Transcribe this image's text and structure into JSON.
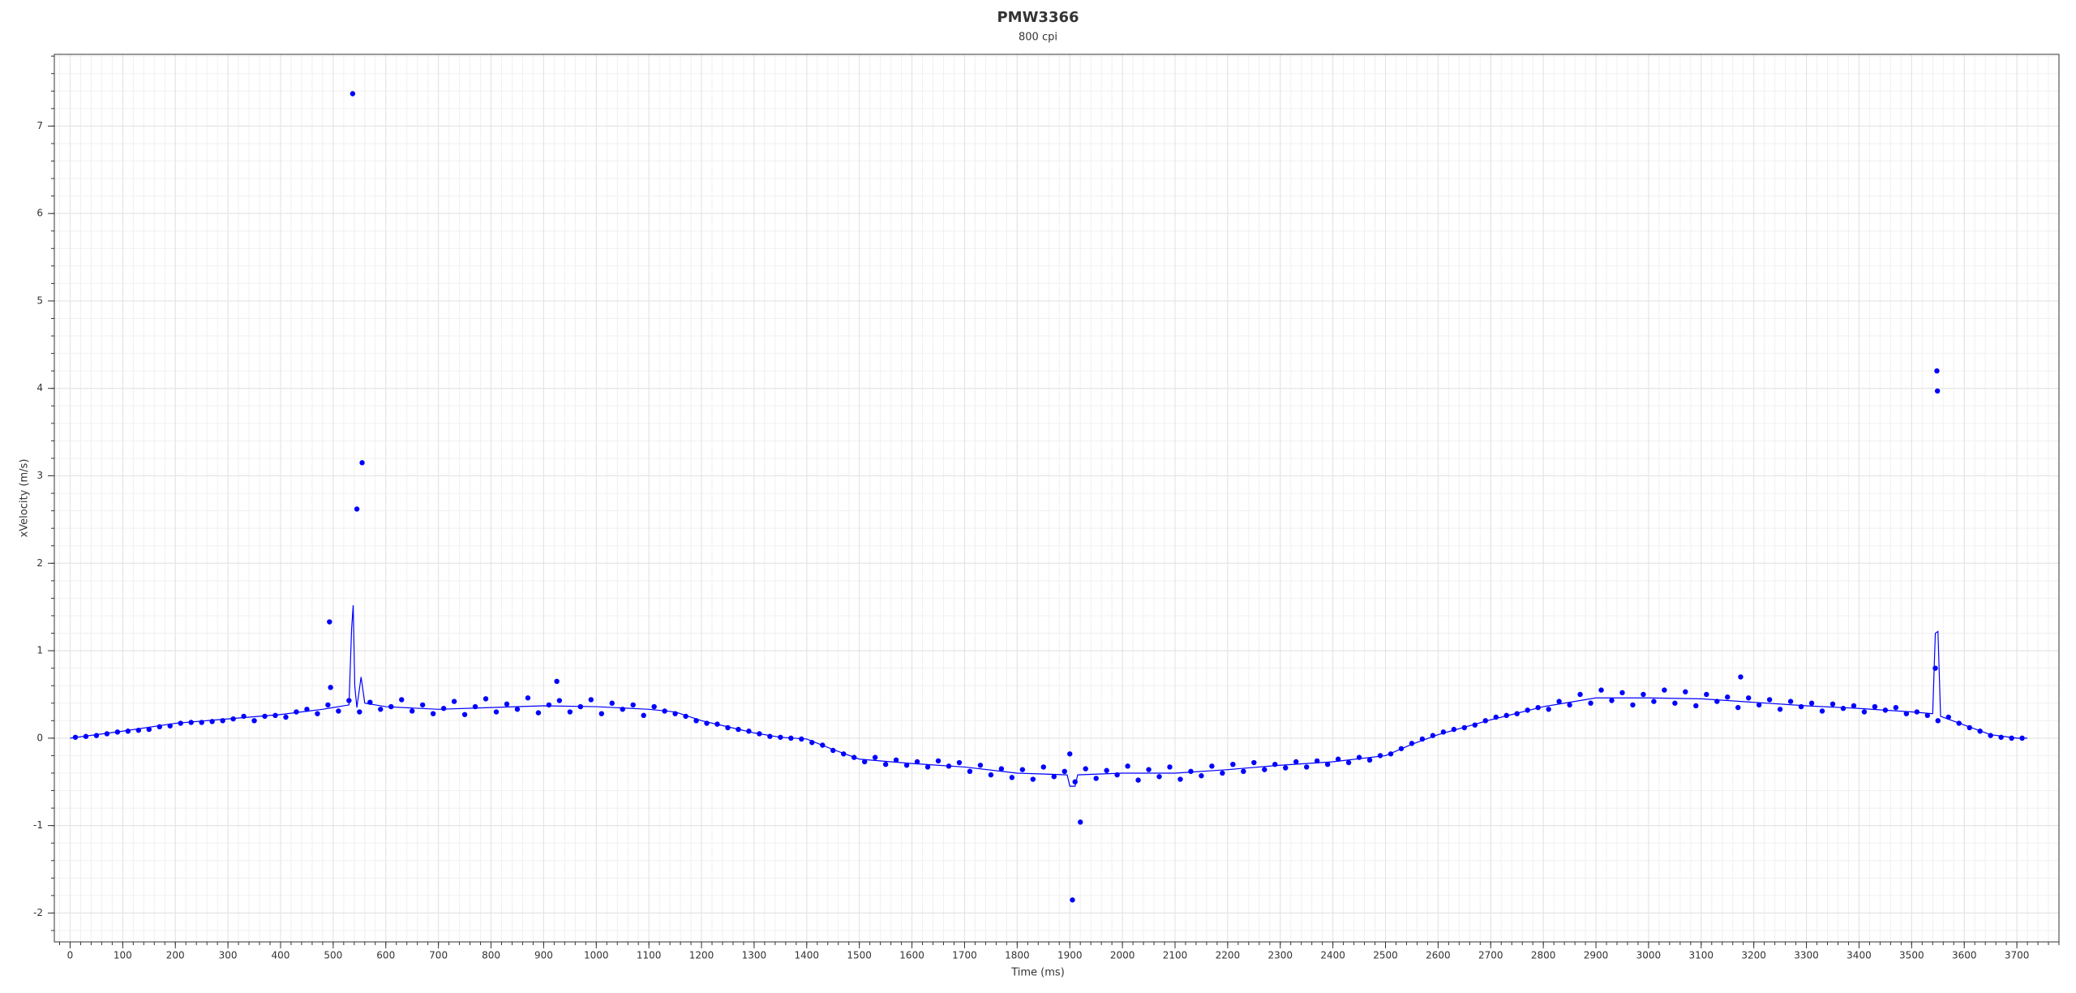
{
  "chart_data": {
    "type": "scatter",
    "title": "PMW3366",
    "subtitle": "800 cpi",
    "x_label": "Time (ms)",
    "y_label": "xVelocity (m/s)",
    "xlim": [
      -30,
      3780
    ],
    "ylim": [
      -2.33,
      7.82
    ],
    "xticks": [
      0,
      100,
      200,
      300,
      400,
      500,
      600,
      700,
      800,
      900,
      1000,
      1100,
      1200,
      1300,
      1400,
      1500,
      1600,
      1700,
      1800,
      1900,
      2000,
      2100,
      2200,
      2300,
      2400,
      2500,
      2600,
      2700,
      2800,
      2900,
      3000,
      3100,
      3200,
      3300,
      3400,
      3500,
      3600,
      3700
    ],
    "yticks": [
      -2,
      -1,
      0,
      1,
      2,
      3,
      4,
      5,
      6,
      7
    ],
    "grid": true,
    "minor_grid": true,
    "series": [
      {
        "type": "scatter",
        "color": "#0000ff",
        "x": [
          10,
          30,
          50,
          70,
          90,
          110,
          130,
          150,
          170,
          190,
          210,
          230,
          250,
          270,
          290,
          310,
          330,
          350,
          370,
          390,
          410,
          430,
          450,
          470,
          490,
          510,
          530,
          550,
          570,
          590,
          610,
          630,
          650,
          670,
          690,
          710,
          730,
          750,
          770,
          790,
          810,
          830,
          850,
          870,
          890,
          910,
          930,
          950,
          970,
          990,
          1010,
          1030,
          1050,
          1070,
          1090,
          1110,
          1130,
          1150,
          1170,
          1190,
          1210,
          1230,
          1250,
          1270,
          1290,
          1310,
          1330,
          1350,
          1370,
          1390,
          1410,
          1430,
          1450,
          1470,
          1490,
          1510,
          1530,
          1550,
          1570,
          1590,
          1610,
          1630,
          1650,
          1670,
          1690,
          1710,
          1730,
          1750,
          1770,
          1790,
          1810,
          1830,
          1850,
          1870,
          1890,
          1910,
          1930,
          1950,
          1970,
          1990,
          2010,
          2030,
          2050,
          2070,
          2090,
          2110,
          2130,
          2150,
          2170,
          2190,
          2210,
          2230,
          2250,
          2270,
          2290,
          2310,
          2330,
          2350,
          2370,
          2390,
          2410,
          2430,
          2450,
          2470,
          2490,
          2510,
          2530,
          2550,
          2570,
          2590,
          2610,
          2630,
          2650,
          2670,
          2690,
          2710,
          2730,
          2750,
          2770,
          2790,
          2810,
          2830,
          2850,
          2870,
          2890,
          2910,
          2930,
          2950,
          2970,
          2990,
          3010,
          3030,
          3050,
          3070,
          3090,
          3110,
          3130,
          3150,
          3170,
          3190,
          3210,
          3230,
          3250,
          3270,
          3290,
          3310,
          3330,
          3350,
          3370,
          3390,
          3410,
          3430,
          3450,
          3470,
          3490,
          3510,
          3530,
          3550,
          3570,
          3590,
          3610,
          3630,
          3650,
          3670,
          3690,
          3710,
          493,
          495,
          537,
          545,
          555,
          925,
          1905,
          1920,
          1900,
          3545,
          3548,
          3549,
          3175
        ],
        "values": [
          0.01,
          0.02,
          0.03,
          0.05,
          0.07,
          0.08,
          0.09,
          0.1,
          0.13,
          0.14,
          0.17,
          0.18,
          0.18,
          0.19,
          0.2,
          0.22,
          0.25,
          0.2,
          0.25,
          0.26,
          0.24,
          0.3,
          0.33,
          0.28,
          0.38,
          0.31,
          0.43,
          0.3,
          0.41,
          0.33,
          0.36,
          0.44,
          0.31,
          0.38,
          0.28,
          0.34,
          0.42,
          0.27,
          0.36,
          0.45,
          0.3,
          0.39,
          0.33,
          0.46,
          0.29,
          0.38,
          0.43,
          0.3,
          0.36,
          0.44,
          0.28,
          0.4,
          0.33,
          0.38,
          0.26,
          0.36,
          0.31,
          0.28,
          0.25,
          0.2,
          0.17,
          0.16,
          0.12,
          0.1,
          0.08,
          0.05,
          0.02,
          0.01,
          0,
          -0.01,
          -0.05,
          -0.08,
          -0.14,
          -0.18,
          -0.22,
          -0.27,
          -0.22,
          -0.3,
          -0.25,
          -0.31,
          -0.27,
          -0.33,
          -0.26,
          -0.32,
          -0.28,
          -0.38,
          -0.31,
          -0.42,
          -0.35,
          -0.45,
          -0.36,
          -0.47,
          -0.33,
          -0.44,
          -0.38,
          -0.5,
          -0.35,
          -0.46,
          -0.37,
          -0.42,
          -0.32,
          -0.48,
          -0.36,
          -0.44,
          -0.33,
          -0.47,
          -0.38,
          -0.43,
          -0.32,
          -0.4,
          -0.3,
          -0.38,
          -0.28,
          -0.36,
          -0.3,
          -0.34,
          -0.27,
          -0.33,
          -0.26,
          -0.3,
          -0.24,
          -0.28,
          -0.22,
          -0.25,
          -0.2,
          -0.18,
          -0.12,
          -0.06,
          -0.01,
          0.03,
          0.07,
          0.1,
          0.12,
          0.15,
          0.2,
          0.24,
          0.26,
          0.28,
          0.32,
          0.35,
          0.33,
          0.42,
          0.38,
          0.5,
          0.4,
          0.55,
          0.43,
          0.52,
          0.38,
          0.5,
          0.42,
          0.55,
          0.4,
          0.53,
          0.37,
          0.5,
          0.42,
          0.47,
          0.35,
          0.46,
          0.38,
          0.44,
          0.33,
          0.42,
          0.36,
          0.4,
          0.31,
          0.39,
          0.34,
          0.37,
          0.3,
          0.36,
          0.32,
          0.35,
          0.28,
          0.3,
          0.26,
          0.2,
          0.24,
          0.17,
          0.12,
          0.08,
          0.03,
          0.01,
          0,
          0,
          1.33,
          0.58,
          7.37,
          2.62,
          3.15,
          0.65,
          -1.85,
          -0.96,
          -0.18,
          0.8,
          4.2,
          3.97,
          0.7
        ]
      },
      {
        "type": "line",
        "color": "#0000ff",
        "x": [
          0,
          100,
          200,
          300,
          400,
          480,
          500,
          530,
          535,
          538,
          541,
          545,
          553,
          560,
          600,
          700,
          800,
          900,
          1000,
          1100,
          1150,
          1200,
          1250,
          1300,
          1350,
          1400,
          1450,
          1500,
          1600,
          1700,
          1800,
          1895,
          1900,
          1910,
          1915,
          2000,
          2100,
          2200,
          2300,
          2400,
          2500,
          2550,
          2600,
          2700,
          2800,
          2900,
          3000,
          3100,
          3200,
          3300,
          3400,
          3500,
          3540,
          3545,
          3550,
          3555,
          3600,
          3650,
          3700,
          3720
        ],
        "values": [
          0,
          0.08,
          0.17,
          0.22,
          0.27,
          0.33,
          0.35,
          0.38,
          1.25,
          1.52,
          0.6,
          0.35,
          0.7,
          0.4,
          0.36,
          0.33,
          0.35,
          0.37,
          0.36,
          0.33,
          0.3,
          0.2,
          0.13,
          0.06,
          0.01,
          -0.01,
          -0.13,
          -0.24,
          -0.29,
          -0.33,
          -0.4,
          -0.42,
          -0.55,
          -0.55,
          -0.42,
          -0.4,
          -0.4,
          -0.36,
          -0.31,
          -0.27,
          -0.2,
          -0.07,
          0.04,
          0.21,
          0.36,
          0.46,
          0.46,
          0.45,
          0.41,
          0.37,
          0.34,
          0.3,
          0.28,
          1.2,
          1.22,
          0.25,
          0.15,
          0.04,
          0,
          0
        ]
      }
    ]
  }
}
